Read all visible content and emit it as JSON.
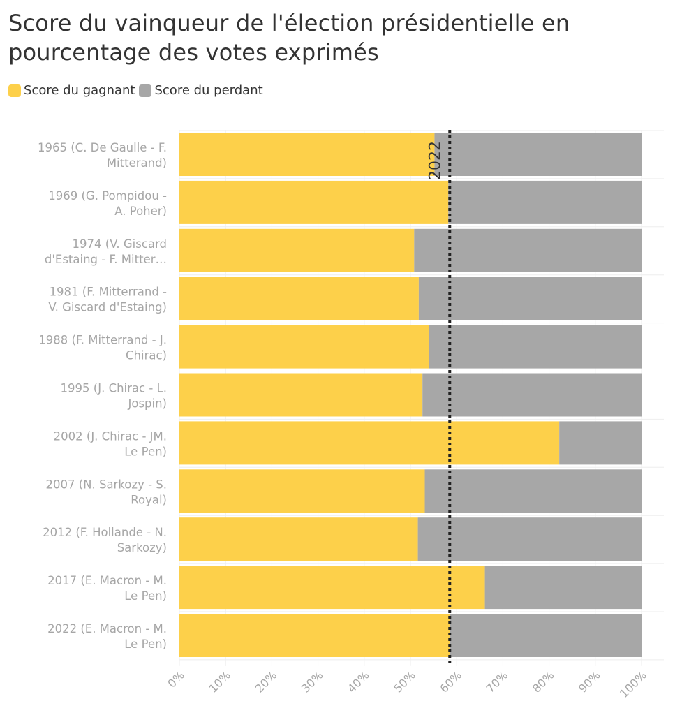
{
  "title": "Score du vainqueur de l'élection présidentielle en pourcentage des votes exprimés",
  "legend": {
    "winner_label": "Score du gagnant",
    "loser_label": "Score du perdant"
  },
  "colors": {
    "winner": "#fdd04a",
    "loser": "#a7a7a7",
    "reference_line": "#222222",
    "grid": "#eeeeee",
    "axis_text": "#a6a6a6"
  },
  "chart_data": {
    "type": "bar",
    "orientation": "horizontal",
    "stacked": true,
    "title": "Score du vainqueur de l'élection présidentielle en pourcentage des votes exprimés",
    "xlabel": "",
    "ylabel": "",
    "xlim": [
      0,
      100
    ],
    "x_ticks": [
      "0%",
      "10%",
      "20%",
      "30%",
      "40%",
      "50%",
      "60%",
      "70%",
      "80%",
      "90%",
      "100%"
    ],
    "categories": [
      [
        "1965 (C. De Gaulle - F.",
        "Mitterand)"
      ],
      [
        "1969 (G. Pompidou -",
        "A. Poher)"
      ],
      [
        "1974 (V. Giscard",
        "d'Estaing - F. Mitter…"
      ],
      [
        "1981 (F. Mitterrand -",
        "V. Giscard d'Estaing)"
      ],
      [
        "1988 (F. Mitterrand - J.",
        "Chirac)"
      ],
      [
        "1995 (J. Chirac - L.",
        "Jospin)"
      ],
      [
        "2002 (J. Chirac - JM.",
        "Le Pen)"
      ],
      [
        "2007 (N. Sarkozy - S.",
        "Royal)"
      ],
      [
        "2012 (F. Hollande - N.",
        "Sarkozy)"
      ],
      [
        "2017 (E. Macron - M.",
        "Le Pen)"
      ],
      [
        "2022 (E. Macron - M.",
        "Le Pen)"
      ]
    ],
    "series": [
      {
        "name": "Score du gagnant",
        "values": [
          55.2,
          58.2,
          50.8,
          51.8,
          54.0,
          52.6,
          82.2,
          53.1,
          51.6,
          66.1,
          58.5
        ]
      },
      {
        "name": "Score du perdant",
        "values": [
          44.8,
          41.8,
          49.2,
          48.2,
          46.0,
          47.4,
          17.8,
          46.9,
          48.4,
          33.9,
          41.5
        ]
      }
    ],
    "reference_line": {
      "value": 58.5,
      "label": "2022"
    }
  }
}
